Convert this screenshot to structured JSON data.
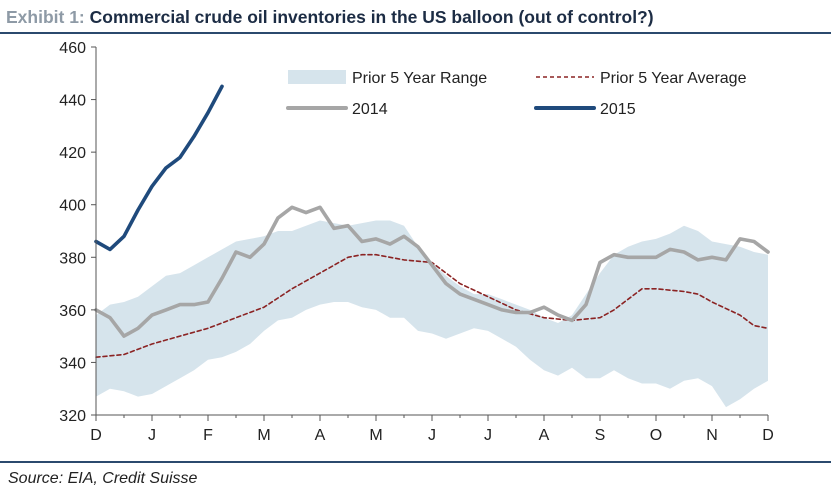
{
  "header": {
    "exhibit": "Exhibit 1:",
    "title": "Commercial crude oil inventories in the US balloon (out of control?)"
  },
  "footer": {
    "source": "Source: EIA, Credit Suisse"
  },
  "colors": {
    "range_fill": "#d6e4ec",
    "avg_line": "#8b2323",
    "line_2014": "#a6a6a6",
    "line_2015": "#1f4a7c",
    "axis": "#555555",
    "rule": "#2b4a6e"
  },
  "chart_data": {
    "type": "line",
    "title": "Commercial crude oil inventories in the US balloon (out of control?)",
    "x_ticks": [
      "D",
      "J",
      "F",
      "M",
      "A",
      "M",
      "J",
      "J",
      "A",
      "S",
      "O",
      "N",
      "D"
    ],
    "x_range": [
      0,
      48
    ],
    "ylim": [
      320,
      460
    ],
    "y_ticks": [
      320,
      340,
      360,
      380,
      400,
      420,
      440,
      460
    ],
    "grid": false,
    "legend_position": "top-right",
    "range_series": {
      "name": "Prior 5 Year Range",
      "x": [
        0,
        1,
        2,
        3,
        4,
        5,
        6,
        7,
        8,
        9,
        10,
        11,
        12,
        13,
        14,
        15,
        16,
        17,
        18,
        19,
        20,
        21,
        22,
        23,
        24,
        25,
        26,
        27,
        28,
        29,
        30,
        31,
        32,
        33,
        34,
        35,
        36,
        37,
        38,
        39,
        40,
        41,
        42,
        43,
        44,
        45,
        46,
        47,
        48
      ],
      "upper": [
        358,
        362,
        363,
        365,
        369,
        373,
        374,
        377,
        380,
        383,
        386,
        387,
        388,
        390,
        390,
        392,
        394,
        393,
        392,
        393,
        394,
        394,
        392,
        384,
        378,
        373,
        369,
        366,
        366,
        364,
        362,
        360,
        357,
        355,
        358,
        366,
        374,
        381,
        384,
        386,
        387,
        389,
        392,
        390,
        386,
        385,
        384,
        382,
        381
      ],
      "lower": [
        327,
        330,
        329,
        327,
        328,
        331,
        334,
        337,
        341,
        342,
        344,
        347,
        352,
        356,
        357,
        360,
        362,
        363,
        363,
        361,
        360,
        357,
        357,
        352,
        351,
        349,
        351,
        353,
        352,
        349,
        346,
        341,
        337,
        335,
        338,
        334,
        334,
        337,
        334,
        332,
        332,
        330,
        333,
        334,
        331,
        323,
        326,
        330,
        333
      ]
    },
    "series": [
      {
        "name": "Prior 5 Year Average",
        "style": "dashed",
        "x": [
          0,
          2,
          4,
          6,
          8,
          10,
          12,
          14,
          15,
          16,
          18,
          19,
          20,
          22,
          24,
          26,
          28,
          30,
          32,
          34,
          36,
          37,
          38,
          39,
          40,
          42,
          43,
          44,
          46,
          47,
          48
        ],
        "y": [
          342,
          343,
          347,
          350,
          353,
          357,
          361,
          368,
          371,
          374,
          380,
          381,
          381,
          379,
          378,
          370,
          365,
          360,
          357,
          356,
          357,
          360,
          364,
          368,
          368,
          367,
          366,
          363,
          358,
          354,
          353
        ]
      },
      {
        "name": "2014",
        "style": "solid",
        "x": [
          0,
          1,
          2,
          3,
          4,
          5,
          6,
          7,
          8,
          9,
          10,
          11,
          12,
          13,
          14,
          15,
          16,
          17,
          18,
          19,
          20,
          21,
          22,
          23,
          24,
          25,
          26,
          27,
          28,
          29,
          30,
          31,
          32,
          33,
          34,
          35,
          36,
          37,
          38,
          39,
          40,
          41,
          42,
          43,
          44,
          45,
          46,
          47,
          48
        ],
        "y": [
          360,
          357,
          350,
          353,
          358,
          360,
          362,
          362,
          363,
          372,
          382,
          380,
          385,
          395,
          399,
          397,
          399,
          391,
          392,
          386,
          387,
          385,
          388,
          384,
          377,
          370,
          366,
          364,
          362,
          360,
          359,
          359,
          361,
          358,
          356,
          362,
          378,
          381,
          380,
          380,
          380,
          383,
          382,
          379,
          380,
          379,
          387,
          386,
          382
        ]
      },
      {
        "name": "2015",
        "style": "solid",
        "x": [
          0,
          1,
          2,
          3,
          4,
          5,
          6,
          7,
          8,
          9
        ],
        "y": [
          386,
          383,
          388,
          398,
          407,
          414,
          418,
          426,
          435,
          445
        ]
      }
    ]
  }
}
